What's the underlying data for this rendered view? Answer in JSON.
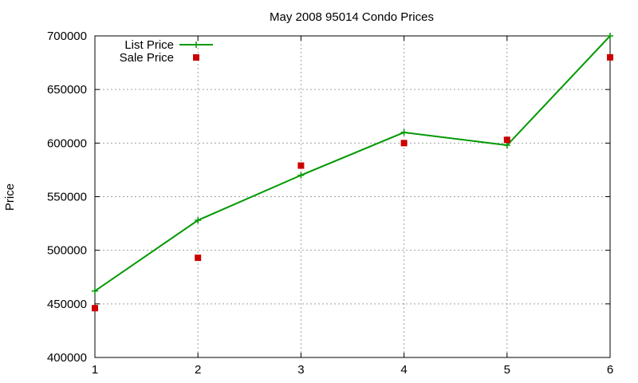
{
  "chart_data": {
    "type": "line",
    "title": "May 2008 95014 Condo Prices",
    "xlabel": "",
    "ylabel": "Price",
    "x": [
      1,
      2,
      3,
      4,
      5,
      6
    ],
    "xlim": [
      1,
      6
    ],
    "ylim": [
      400000,
      700000
    ],
    "x_ticks": [
      "1",
      "2",
      "3",
      "4",
      "5",
      "6"
    ],
    "y_ticks": [
      "400000",
      "450000",
      "500000",
      "550000",
      "600000",
      "650000",
      "700000"
    ],
    "grid": true,
    "legend_position": "top-left",
    "series": [
      {
        "name": "List Price",
        "style": "line-with-plus-markers",
        "color": "#009900",
        "values": [
          462000,
          528000,
          570000,
          610000,
          598000,
          700000
        ]
      },
      {
        "name": "Sale Price",
        "style": "square-markers",
        "color": "#cc0000",
        "values": [
          446000,
          493000,
          579000,
          600000,
          603000,
          680000
        ]
      }
    ]
  }
}
